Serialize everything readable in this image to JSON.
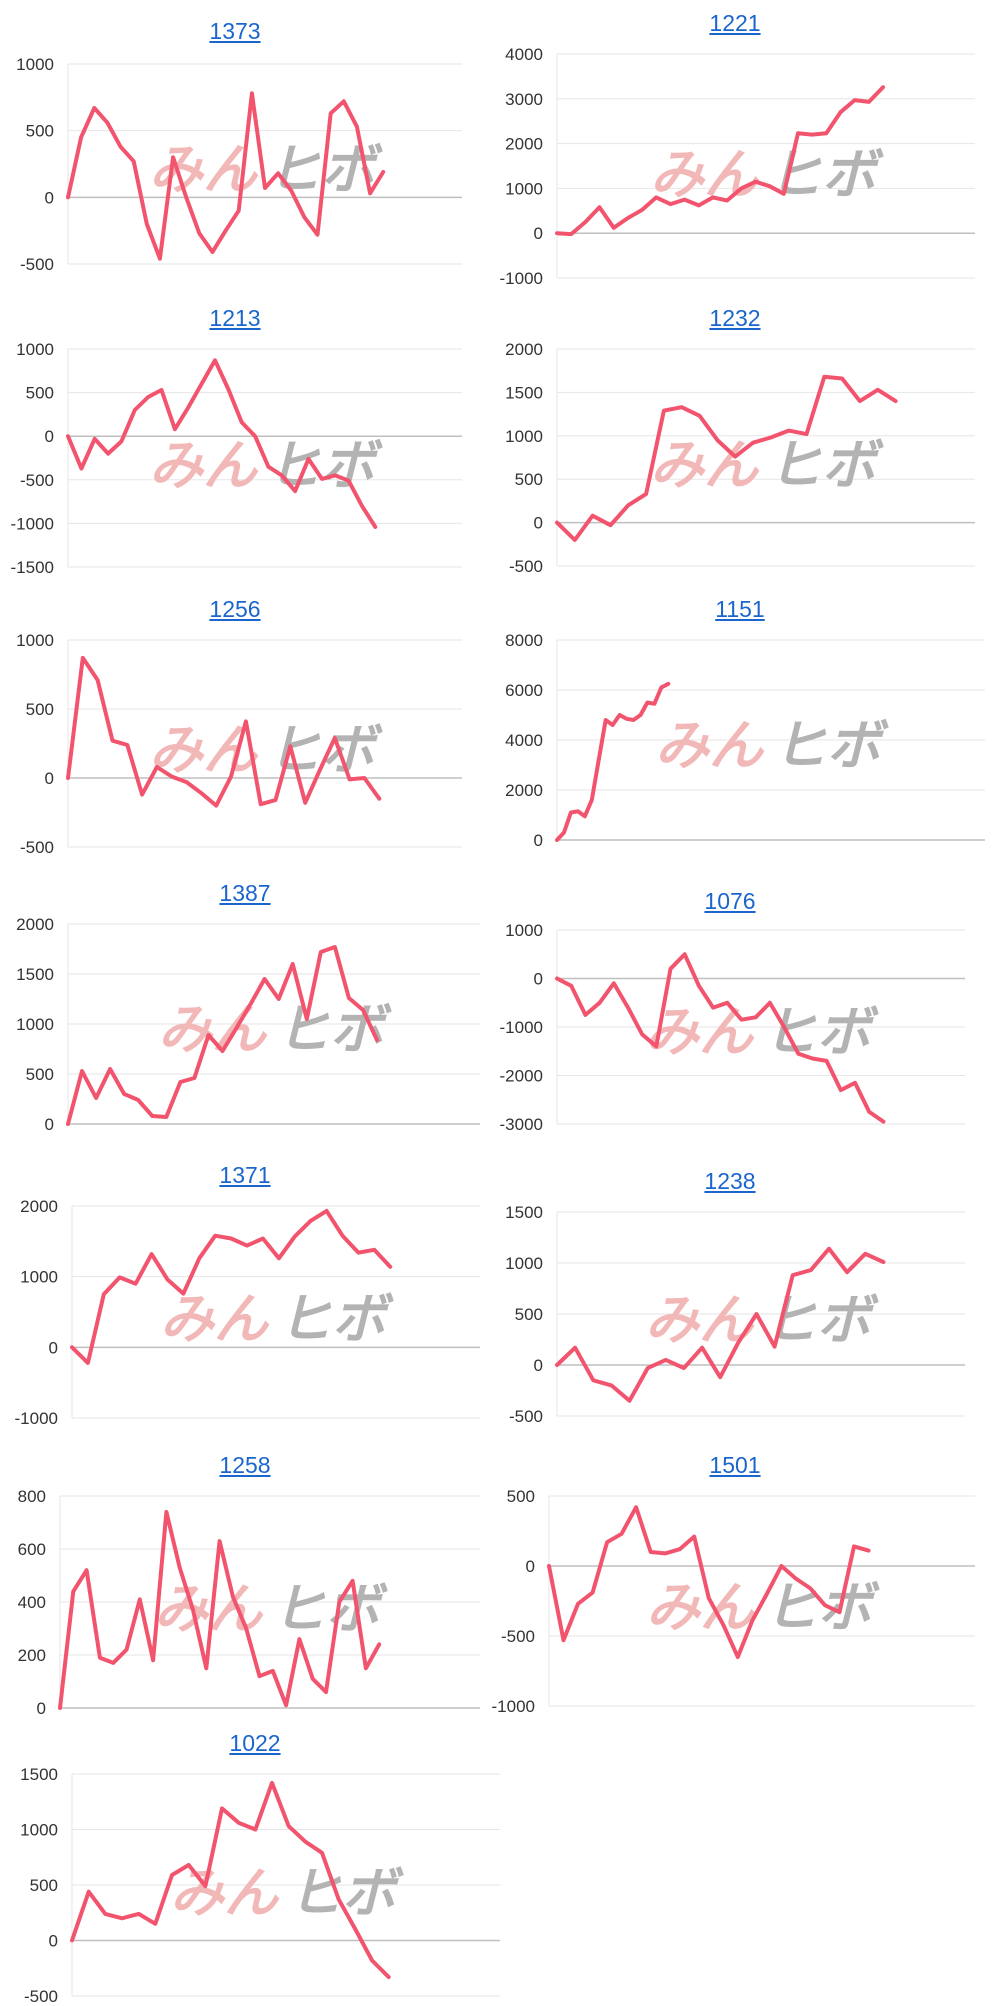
{
  "colors": {
    "line": "#f2546e",
    "grid": "#e6e6e6",
    "zero": "#bfbfbf",
    "title": "#1a66cc"
  },
  "watermark": {
    "kana": "みん",
    "latin": "ヒボ"
  },
  "chart_data": [
    {
      "type": "line",
      "title": "1373",
      "ylim": [
        -500,
        1000
      ],
      "yticks": [
        1000,
        500,
        0,
        -500
      ],
      "values": [
        0,
        450,
        670,
        560,
        380,
        270,
        -200,
        -460,
        300,
        0,
        -270,
        -410,
        -250,
        -100,
        780,
        70,
        180,
        50,
        -150,
        -280,
        630,
        720,
        530,
        30,
        190
      ]
    },
    {
      "type": "line",
      "title": "1221",
      "ylim": [
        -1000,
        4000
      ],
      "yticks": [
        4000,
        3000,
        2000,
        1000,
        0,
        -1000
      ],
      "values": [
        0,
        -20,
        250,
        580,
        120,
        340,
        520,
        800,
        650,
        750,
        620,
        800,
        730,
        1000,
        1150,
        1050,
        880,
        2230,
        2200,
        2230,
        2700,
        2970,
        2930,
        3260
      ]
    },
    {
      "type": "line",
      "title": "1213",
      "ylim": [
        -1500,
        1000
      ],
      "yticks": [
        1000,
        500,
        0,
        -500,
        -1000,
        -1500
      ],
      "values": [
        0,
        -370,
        -30,
        -200,
        -60,
        300,
        450,
        530,
        80,
        330,
        600,
        870,
        540,
        160,
        0,
        -350,
        -450,
        -630,
        -260,
        -490,
        -450,
        -510,
        -800,
        -1040
      ]
    },
    {
      "type": "line",
      "title": "1232",
      "ylim": [
        -500,
        2000
      ],
      "yticks": [
        2000,
        1500,
        1000,
        500,
        0,
        -500
      ],
      "values": [
        0,
        -200,
        80,
        -30,
        200,
        330,
        1290,
        1330,
        1230,
        950,
        760,
        920,
        980,
        1060,
        1020,
        1680,
        1660,
        1400,
        1530,
        1400
      ]
    },
    {
      "type": "line",
      "title": "1256",
      "ylim": [
        -500,
        1000
      ],
      "yticks": [
        1000,
        500,
        0,
        -500
      ],
      "values": [
        0,
        870,
        710,
        270,
        240,
        -120,
        80,
        10,
        -30,
        -110,
        -200,
        10,
        410,
        -190,
        -160,
        230,
        -180,
        60,
        290,
        -10,
        0,
        -150
      ]
    },
    {
      "type": "line",
      "title": "1151",
      "ylim": [
        0,
        8000
      ],
      "yticks": [
        8000,
        6000,
        4000,
        2000,
        0
      ],
      "values": [
        0,
        300,
        1100,
        1150,
        950,
        1600,
        3200,
        4800,
        4600,
        5000,
        4850,
        4800,
        5000,
        5500,
        5450,
        6100,
        6250
      ]
    },
    {
      "type": "line",
      "title": "1387",
      "ylim": [
        0,
        2000
      ],
      "yticks": [
        2000,
        1500,
        1000,
        500,
        0
      ],
      "values": [
        0,
        530,
        260,
        550,
        300,
        240,
        80,
        70,
        420,
        460,
        890,
        730,
        960,
        1200,
        1450,
        1250,
        1600,
        1050,
        1720,
        1770,
        1260,
        1140,
        840
      ]
    },
    {
      "type": "line",
      "title": "1076",
      "ylim": [
        -3000,
        1000
      ],
      "yticks": [
        1000,
        0,
        -1000,
        -2000,
        -3000
      ],
      "values": [
        0,
        -150,
        -750,
        -500,
        -100,
        -600,
        -1150,
        -1400,
        200,
        500,
        -150,
        -600,
        -500,
        -850,
        -800,
        -500,
        -1000,
        -1550,
        -1650,
        -1700,
        -2300,
        -2150,
        -2750,
        -2950
      ]
    },
    {
      "type": "line",
      "title": "1371",
      "ylim": [
        -1000,
        2000
      ],
      "yticks": [
        2000,
        1000,
        0,
        -1000
      ],
      "values": [
        0,
        -220,
        750,
        990,
        900,
        1320,
        960,
        760,
        1260,
        1580,
        1540,
        1440,
        1540,
        1260,
        1570,
        1790,
        1930,
        1580,
        1340,
        1380,
        1140
      ]
    },
    {
      "type": "line",
      "title": "1238",
      "ylim": [
        -500,
        1500
      ],
      "yticks": [
        1500,
        1000,
        500,
        0,
        -500
      ],
      "values": [
        0,
        170,
        -150,
        -200,
        -350,
        -30,
        50,
        -30,
        170,
        -120,
        220,
        500,
        180,
        880,
        930,
        1140,
        910,
        1090,
        1010
      ]
    },
    {
      "type": "line",
      "title": "1258",
      "ylim": [
        0,
        800
      ],
      "yticks": [
        800,
        600,
        400,
        200,
        0
      ],
      "values": [
        0,
        440,
        520,
        190,
        170,
        220,
        410,
        180,
        740,
        530,
        370,
        150,
        630,
        420,
        300,
        120,
        140,
        10,
        260,
        110,
        60,
        400,
        480,
        150,
        240
      ]
    },
    {
      "type": "line",
      "title": "1501",
      "ylim": [
        -1000,
        500
      ],
      "yticks": [
        500,
        0,
        -500,
        -1000
      ],
      "values": [
        0,
        -530,
        -270,
        -190,
        170,
        230,
        420,
        100,
        90,
        120,
        210,
        -230,
        -420,
        -650,
        -390,
        -200,
        0,
        -90,
        -160,
        -280,
        -330,
        140,
        110
      ]
    },
    {
      "type": "line",
      "title": "1022",
      "ylim": [
        -500,
        1500
      ],
      "yticks": [
        1500,
        1000,
        500,
        0,
        -500
      ],
      "values": [
        0,
        440,
        240,
        200,
        240,
        150,
        590,
        680,
        490,
        1190,
        1060,
        1000,
        1420,
        1030,
        890,
        790,
        370,
        100,
        -180,
        -330
      ]
    }
  ]
}
